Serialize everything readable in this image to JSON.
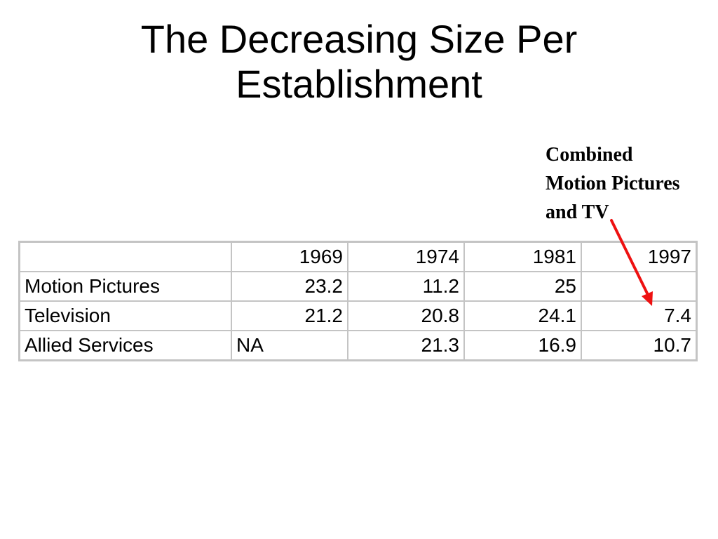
{
  "title": {
    "line1": "The Decreasing Size Per",
    "line2": "Establishment"
  },
  "annotation": {
    "line1": "Combined",
    "line2": "Motion Pictures",
    "line3": "and TV",
    "arrow_color": "#ee1111"
  },
  "table": {
    "columns": [
      "",
      "1969",
      "1974",
      "1981",
      "1997"
    ],
    "rows": [
      {
        "label": "Motion Pictures",
        "values": [
          "23.2",
          "11.2",
          "25",
          ""
        ]
      },
      {
        "label": "Television",
        "values": [
          "21.2",
          "20.8",
          "24.1",
          "7.4"
        ]
      },
      {
        "label": "Allied Services",
        "values": [
          "NA",
          "21.3",
          "16.9",
          "10.7"
        ]
      }
    ],
    "border_color": "#c4c4c4"
  }
}
